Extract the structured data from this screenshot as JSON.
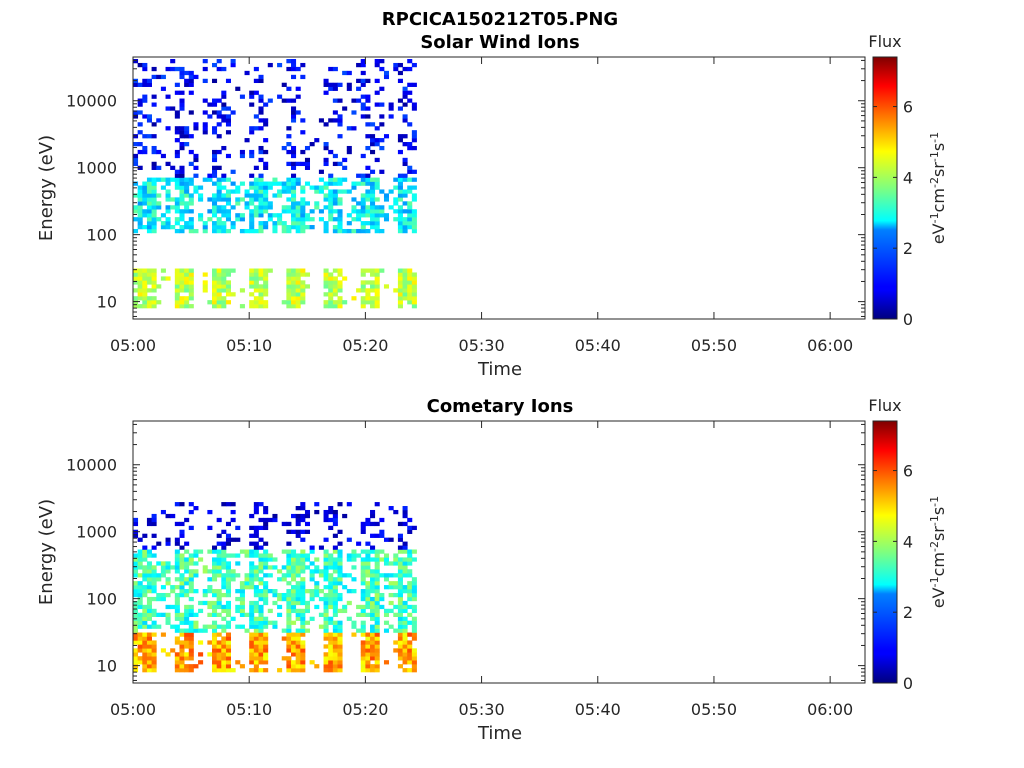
{
  "figure_title": "RPCICA150212T05.PNG",
  "colorbar": {
    "title": "Flux",
    "unit_label": "eV-1cm-2sr-1s-1",
    "range": [
      0,
      7.4
    ],
    "ticks": [
      0,
      2,
      4,
      6
    ],
    "colormap": "jet"
  },
  "chart_data": [
    {
      "type": "heatmap",
      "title": "Solar Wind Ions",
      "xlabel": "Time",
      "ylabel": "Energy (eV)",
      "xlim": [
        "05:00",
        "06:03"
      ],
      "ylim": [
        5.5,
        45000
      ],
      "yscale": "log",
      "x_ticks": [
        "05:00",
        "05:10",
        "05:20",
        "05:30",
        "05:40",
        "05:50",
        "06:00"
      ],
      "y_ticks": [
        10,
        100,
        1000,
        10000
      ],
      "data_time_range": [
        "05:00",
        "05:24"
      ],
      "profile": {
        "low_energy_band_eV": [
          8,
          30
        ],
        "low_energy_flux": [
          3.5,
          4.8
        ],
        "mid_energy_band_eV": [
          100,
          700
        ],
        "mid_energy_flux": [
          2.0,
          3.5
        ],
        "high_energy_band_eV": [
          700,
          40000
        ],
        "high_energy_flux": [
          0.2,
          1.5
        ]
      }
    },
    {
      "type": "heatmap",
      "title": "Cometary Ions",
      "xlabel": "Time",
      "ylabel": "Energy (eV)",
      "xlim": [
        "05:00",
        "06:03"
      ],
      "ylim": [
        5.5,
        45000
      ],
      "yscale": "log",
      "x_ticks": [
        "05:00",
        "05:10",
        "05:20",
        "05:30",
        "05:40",
        "05:50",
        "06:00"
      ],
      "y_ticks": [
        10,
        100,
        1000,
        10000
      ],
      "data_time_range": [
        "05:00",
        "05:24"
      ],
      "profile": {
        "low_energy_band_eV": [
          8,
          30
        ],
        "low_energy_flux": [
          4.5,
          6.0
        ],
        "mid_energy_band_eV": [
          30,
          500
        ],
        "mid_energy_flux": [
          2.5,
          4.0
        ],
        "high_energy_band_eV": [
          500,
          2500
        ],
        "high_energy_flux": [
          0.2,
          1.2
        ]
      }
    }
  ]
}
